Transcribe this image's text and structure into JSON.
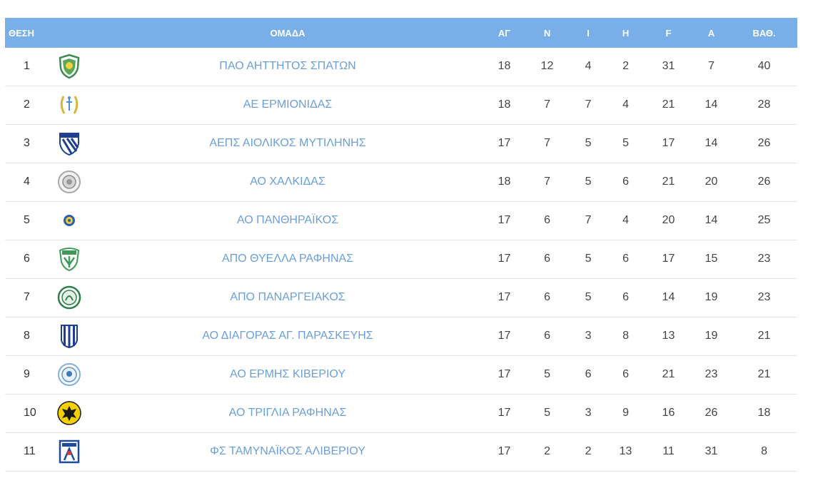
{
  "columns": {
    "position": "ΘΕΣΗ",
    "team": "ΟΜΑΔΑ",
    "played": "ΑΓ",
    "wins": "Ν",
    "draws": "Ι",
    "losses": "Η",
    "goals_for": "F",
    "goals_against": "A",
    "points": "ΒΑΘ."
  },
  "rows": [
    {
      "pos": "1",
      "team": "ΠΑΟ ΑΗΤΤΗΤΟΣ ΣΠΑΤΩΝ",
      "played": "18",
      "wins": "12",
      "draws": "4",
      "losses": "2",
      "gf": "31",
      "ga": "7",
      "pts": "40",
      "crest": "green-shield-crest-icon"
    },
    {
      "pos": "2",
      "team": "ΑΕ ΕΡΜΙΟΝΙΔΑΣ",
      "played": "18",
      "wins": "7",
      "draws": "7",
      "losses": "4",
      "gf": "21",
      "ga": "14",
      "pts": "28",
      "crest": "laurel-wreath-crest-icon"
    },
    {
      "pos": "3",
      "team": "ΑΕΠΣ ΑΙΟΛΙΚΟΣ ΜΥΤΙΛΗΝΗΣ",
      "played": "17",
      "wins": "7",
      "draws": "5",
      "losses": "5",
      "gf": "17",
      "ga": "14",
      "pts": "26",
      "crest": "blue-striped-shield-crest-icon"
    },
    {
      "pos": "4",
      "team": "ΑΟ ΧΑΛΚΙΔΑΣ",
      "played": "18",
      "wins": "7",
      "draws": "5",
      "losses": "6",
      "gf": "21",
      "ga": "20",
      "pts": "26",
      "crest": "grey-round-crest-icon"
    },
    {
      "pos": "5",
      "team": "ΑΟ ΠΑΝΘΗΡΑΪΚΟΣ",
      "played": "17",
      "wins": "6",
      "draws": "7",
      "losses": "4",
      "gf": "20",
      "ga": "14",
      "pts": "25",
      "crest": "blue-yellow-round-crest-icon"
    },
    {
      "pos": "6",
      "team": "ΑΠΟ ΘΥΕΛΛΑ ΡΑΦΗΝΑΣ",
      "played": "17",
      "wins": "6",
      "draws": "5",
      "losses": "6",
      "gf": "17",
      "ga": "15",
      "pts": "23",
      "crest": "green-white-shield-crest-icon"
    },
    {
      "pos": "7",
      "team": "ΑΠΟ ΠΑΝΑΡΓΕΙΑΚΟΣ",
      "played": "17",
      "wins": "6",
      "draws": "5",
      "losses": "6",
      "gf": "14",
      "ga": "19",
      "pts": "23",
      "crest": "green-round-crest-icon"
    },
    {
      "pos": "8",
      "team": "ΑΟ ΔΙΑΓΟΡΑΣ ΑΓ. ΠΑΡΑΣΚΕΥΗΣ",
      "played": "17",
      "wins": "6",
      "draws": "3",
      "losses": "8",
      "gf": "13",
      "ga": "19",
      "pts": "21",
      "crest": "blue-white-stripes-crest-icon"
    },
    {
      "pos": "9",
      "team": "ΑΟ ΕΡΜΗΣ ΚΙΒΕΡΙΟΥ",
      "played": "17",
      "wins": "5",
      "draws": "6",
      "losses": "6",
      "gf": "21",
      "ga": "23",
      "pts": "21",
      "crest": "light-blue-round-crest-icon"
    },
    {
      "pos": "10",
      "team": "ΑΟ ΤΡΙΓΛΙΑ ΡΑΦΗΝΑΣ",
      "played": "17",
      "wins": "5",
      "draws": "3",
      "losses": "9",
      "gf": "16",
      "ga": "26",
      "pts": "18",
      "crest": "yellow-eagle-crest-icon"
    },
    {
      "pos": "11",
      "team": "ΦΣ ΤΑΜΥΝΑΪΚΟΣ ΑΛΙΒΕΡΙΟΥ",
      "played": "17",
      "wins": "2",
      "draws": "2",
      "losses": "13",
      "gf": "11",
      "ga": "31",
      "pts": "8",
      "crest": "blue-square-crest-icon"
    }
  ],
  "colors": {
    "header_bg": "#7aaee8",
    "header_text": "#ffffff",
    "team_link": "#6a9fd8",
    "row_border": "#e1e4e8"
  }
}
